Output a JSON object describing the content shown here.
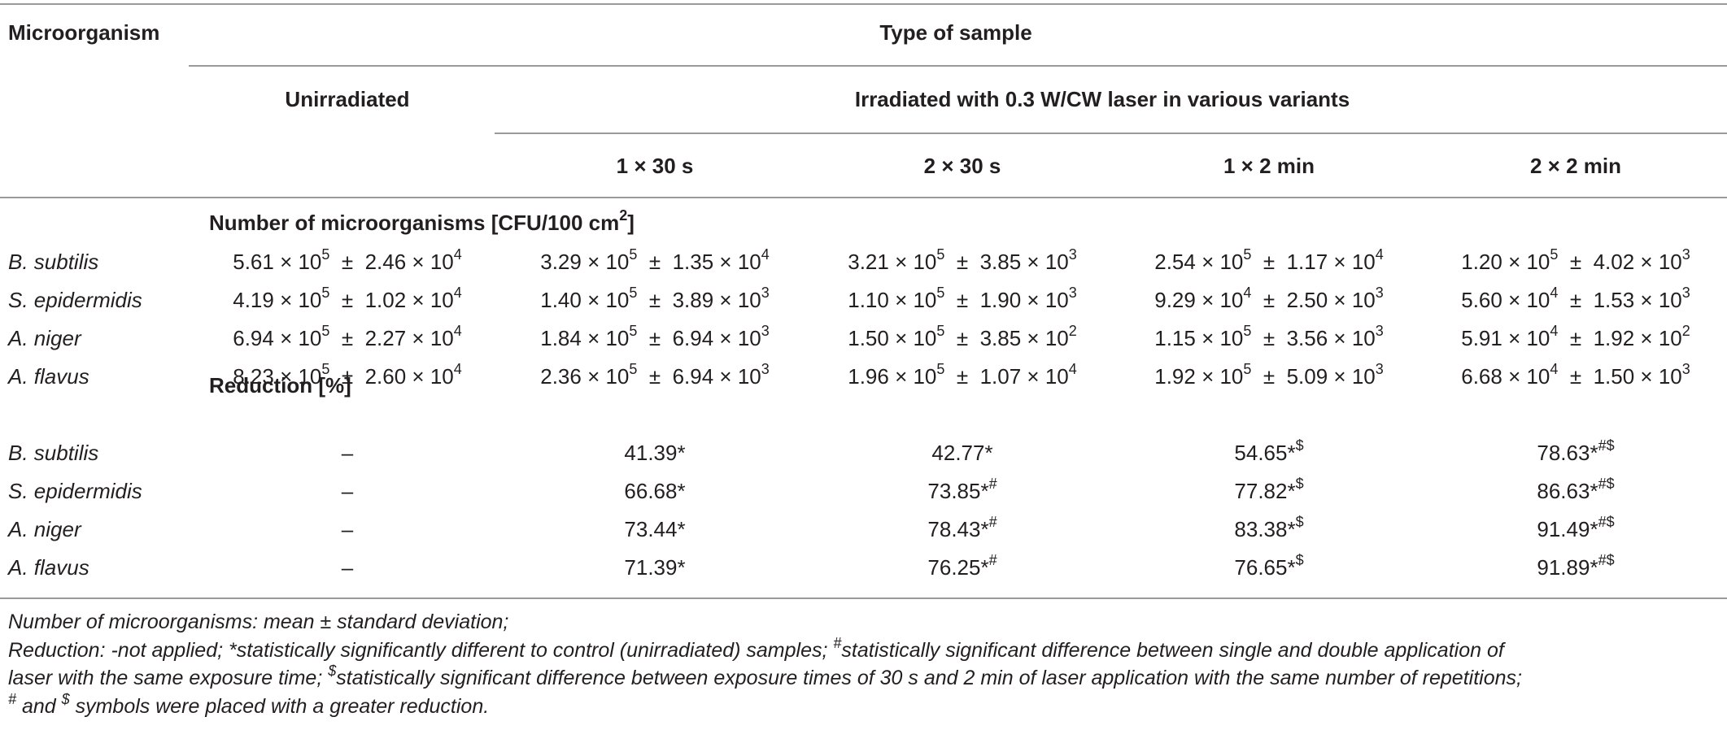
{
  "header": {
    "microorganism": "Microorganism",
    "type_of_sample": "Type of sample",
    "unirradiated": "Unirradiated",
    "irradiated": "Irradiated with 0.3 W/CW laser in various variants",
    "variants": [
      "1 × 30 s",
      "2 × 30 s",
      "1 × 2 min",
      "2 × 2 min"
    ]
  },
  "sections": {
    "count_label": "Number of microorganisms [CFU/100 cm",
    "count_unit_exp": "2",
    "count_label_end": "]",
    "reduction_label": "Reduction [%]"
  },
  "count_rows": [
    {
      "name": "B. subtilis",
      "cells": [
        {
          "m": "5.61 × 10",
          "me": "5",
          "s": "2.46 × 10",
          "se": "4"
        },
        {
          "m": "3.29 × 10",
          "me": "5",
          "s": "1.35 × 10",
          "se": "4"
        },
        {
          "m": "3.21 × 10",
          "me": "5",
          "s": "3.85 × 10",
          "se": "3"
        },
        {
          "m": "2.54 × 10",
          "me": "5",
          "s": "1.17 × 10",
          "se": "4"
        },
        {
          "m": "1.20 × 10",
          "me": "5",
          "s": "4.02 × 10",
          "se": "3"
        }
      ]
    },
    {
      "name": "S. epidermidis",
      "cells": [
        {
          "m": "4.19 × 10",
          "me": "5",
          "s": "1.02 × 10",
          "se": "4"
        },
        {
          "m": "1.40 × 10",
          "me": "5",
          "s": "3.89 × 10",
          "se": "3"
        },
        {
          "m": "1.10 × 10",
          "me": "5",
          "s": "1.90 × 10",
          "se": "3"
        },
        {
          "m": "9.29 × 10",
          "me": "4",
          "s": "2.50 × 10",
          "se": "3"
        },
        {
          "m": "5.60 × 10",
          "me": "4",
          "s": "1.53 × 10",
          "se": "3"
        }
      ]
    },
    {
      "name": "A. niger",
      "cells": [
        {
          "m": "6.94 × 10",
          "me": "5",
          "s": "2.27 × 10",
          "se": "4"
        },
        {
          "m": "1.84 × 10",
          "me": "5",
          "s": "6.94 × 10",
          "se": "3"
        },
        {
          "m": "1.50 × 10",
          "me": "5",
          "s": "3.85 × 10",
          "se": "2"
        },
        {
          "m": "1.15 × 10",
          "me": "5",
          "s": "3.56 × 10",
          "se": "3"
        },
        {
          "m": "5.91 × 10",
          "me": "4",
          "s": "1.92 × 10",
          "se": "2"
        }
      ]
    },
    {
      "name": "A. flavus",
      "cells": [
        {
          "m": "8.23 × 10",
          "me": "5",
          "s": "2.60 × 10",
          "se": "4"
        },
        {
          "m": "2.36 × 10",
          "me": "5",
          "s": "6.94 × 10",
          "se": "3"
        },
        {
          "m": "1.96 × 10",
          "me": "5",
          "s": "1.07 × 10",
          "se": "4"
        },
        {
          "m": "1.92 × 10",
          "me": "5",
          "s": "5.09 × 10",
          "se": "3"
        },
        {
          "m": "6.68 × 10",
          "me": "4",
          "s": "1.50 × 10",
          "se": "3"
        }
      ]
    }
  ],
  "reduction_rows": [
    {
      "name": "B. subtilis",
      "unirr": "–",
      "vals": [
        {
          "v": "41.39*",
          "sup": ""
        },
        {
          "v": "42.77*",
          "sup": ""
        },
        {
          "v": "54.65*",
          "sup": "$"
        },
        {
          "v": "78.63*",
          "sup": "#$"
        }
      ]
    },
    {
      "name": "S. epidermidis",
      "unirr": "–",
      "vals": [
        {
          "v": "66.68*",
          "sup": ""
        },
        {
          "v": "73.85*",
          "sup": "#"
        },
        {
          "v": "77.82*",
          "sup": "$"
        },
        {
          "v": "86.63*",
          "sup": "#$"
        }
      ]
    },
    {
      "name": "A. niger",
      "unirr": "–",
      "vals": [
        {
          "v": "73.44*",
          "sup": ""
        },
        {
          "v": "78.43*",
          "sup": "#"
        },
        {
          "v": "83.38*",
          "sup": "$"
        },
        {
          "v": "91.49*",
          "sup": "#$"
        }
      ]
    },
    {
      "name": "A. flavus",
      "unirr": "–",
      "vals": [
        {
          "v": "71.39*",
          "sup": ""
        },
        {
          "v": "76.25*",
          "sup": "#"
        },
        {
          "v": "76.65*",
          "sup": "$"
        },
        {
          "v": "91.89*",
          "sup": "#$"
        }
      ]
    }
  ],
  "footnotes": {
    "line1": "Number of microorganisms: mean ± standard deviation;",
    "line2a": "Reduction: -not applied; *statistically significantly different to control (unirradiated) samples; ",
    "line2_sup": "#",
    "line2b": "statistically significant difference between single and double application of",
    "line3a": "laser with the same exposure time; ",
    "line3_sup": "$",
    "line3b": "statistically significant difference between exposure times of 30 s and 2 min of laser application with the same number of repetitions;",
    "line4_sup1": "#",
    "line4a": " and ",
    "line4_sup2": "$",
    "line4b": " symbols were placed with a greater reduction."
  }
}
